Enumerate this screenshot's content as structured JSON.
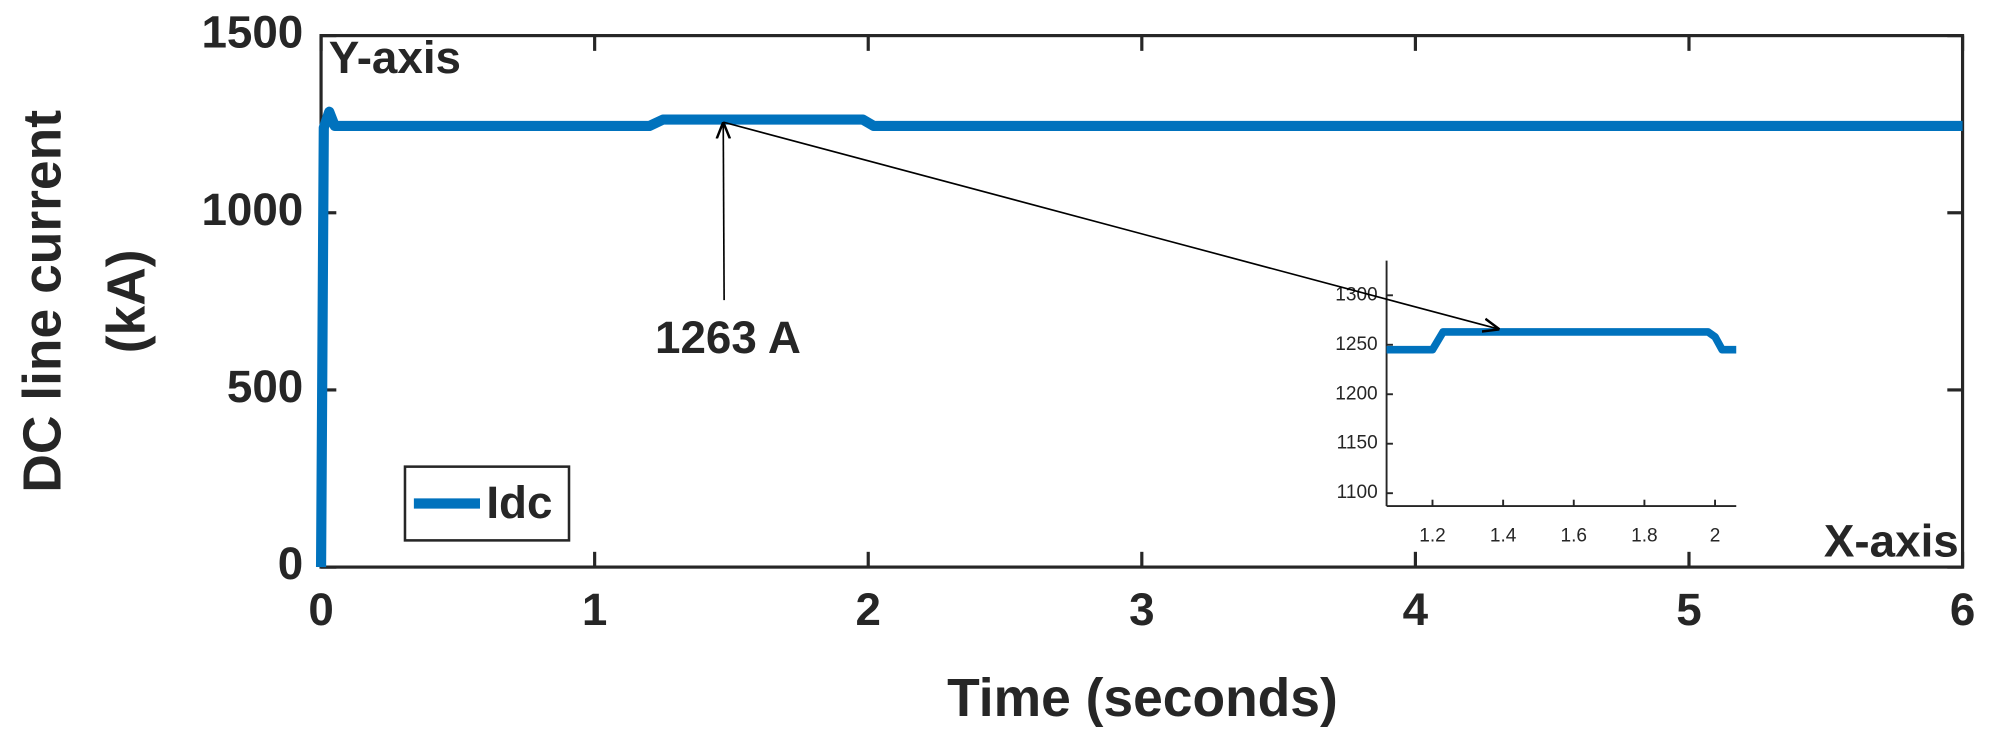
{
  "chart_data": [
    {
      "type": "line",
      "title": "Y-axis",
      "corner_label": "X-axis",
      "xlabel": "Time (seconds)",
      "ylabel": [
        "DC line current",
        "(kA)"
      ],
      "x": [
        0,
        0.01,
        0.03,
        0.05,
        0.1,
        1.2,
        1.25,
        1.98,
        2.02,
        6
      ],
      "series": [
        {
          "name": "Idc",
          "color": "#0072bd",
          "values": [
            0,
            1240,
            1285,
            1245,
            1245,
            1245,
            1263,
            1263,
            1245,
            1245
          ]
        }
      ],
      "xlim": [
        0,
        6
      ],
      "xticks": [
        0,
        1,
        2,
        3,
        4,
        5,
        6
      ],
      "ylim": [
        0,
        1500
      ],
      "yticks": [
        0,
        500,
        1000,
        1500
      ],
      "legend": "lower left",
      "grid": false,
      "annotations": [
        {
          "text": "1263 A",
          "x": 1.47,
          "y": 1263
        }
      ]
    },
    {
      "type": "line",
      "x": [
        1.07,
        1.2,
        1.23,
        1.98,
        2.0,
        2.02,
        2.06
      ],
      "series": [
        {
          "color": "#0072bd",
          "values": [
            1245,
            1245,
            1263,
            1263,
            1258,
            1245,
            1245
          ]
        }
      ],
      "xlim": [
        1.07,
        2.06
      ],
      "xticks": [
        1.2,
        1.4,
        1.6,
        1.8,
        2
      ],
      "ylim": [
        1087,
        1335
      ],
      "yticks": [
        1100,
        1150,
        1200,
        1250,
        1300
      ],
      "grid": false
    }
  ]
}
